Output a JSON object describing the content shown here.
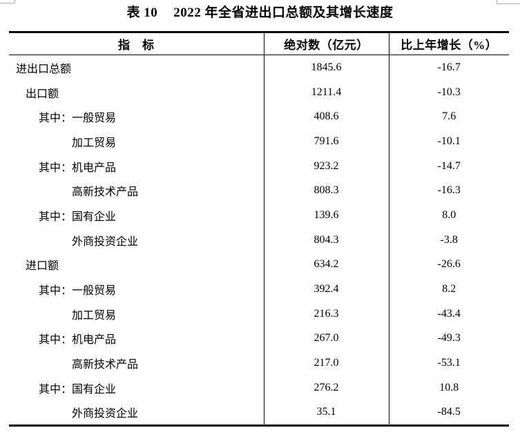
{
  "title": {
    "prefix": "表 10",
    "text": "2022 年全省进出口总额及其增长速度"
  },
  "table": {
    "columns": [
      {
        "label": "指　标"
      },
      {
        "label": "绝对数（亿元）"
      },
      {
        "label": "比上年增长（%）"
      }
    ],
    "rows": [
      {
        "prefix": "",
        "label": "进出口总额",
        "indent": 0,
        "absolute": "1845.6",
        "growth": "-16.7"
      },
      {
        "prefix": "",
        "label": "出口额",
        "indent": 1,
        "absolute": "1211.4",
        "growth": "-10.3"
      },
      {
        "prefix": "其中：",
        "label": "一般贸易",
        "indent": 2,
        "absolute": "408.6",
        "growth": "7.6"
      },
      {
        "prefix": "",
        "label": "加工贸易",
        "indent": 3,
        "absolute": "791.6",
        "growth": "-10.1"
      },
      {
        "prefix": "其中：",
        "label": "机电产品",
        "indent": 2,
        "absolute": "923.2",
        "growth": "-14.7"
      },
      {
        "prefix": "",
        "label": "高新技术产品",
        "indent": 3,
        "absolute": "808.3",
        "growth": "-16.3"
      },
      {
        "prefix": "其中：",
        "label": "国有企业",
        "indent": 2,
        "absolute": "139.6",
        "growth": "8.0"
      },
      {
        "prefix": "",
        "label": "外商投资企业",
        "indent": 3,
        "absolute": "804.3",
        "growth": "-3.8"
      },
      {
        "prefix": "",
        "label": "进口额",
        "indent": 1,
        "absolute": "634.2",
        "growth": "-26.6"
      },
      {
        "prefix": "其中：",
        "label": "一般贸易",
        "indent": 2,
        "absolute": "392.4",
        "growth": "8.2"
      },
      {
        "prefix": "",
        "label": "加工贸易",
        "indent": 3,
        "absolute": "216.3",
        "growth": "-43.4"
      },
      {
        "prefix": "其中：",
        "label": "机电产品",
        "indent": 2,
        "absolute": "267.0",
        "growth": "-49.3"
      },
      {
        "prefix": "",
        "label": "高新技术产品",
        "indent": 3,
        "absolute": "217.0",
        "growth": "-53.1"
      },
      {
        "prefix": "其中：",
        "label": "国有企业",
        "indent": 2,
        "absolute": "276.2",
        "growth": "10.8"
      },
      {
        "prefix": "",
        "label": "外商投资企业",
        "indent": 3,
        "absolute": "35.1",
        "growth": "-84.5"
      }
    ]
  },
  "colors": {
    "background": "#ffffff",
    "text": "#000000",
    "table_rule": "#000000",
    "boundary_mark": "#ababab"
  }
}
